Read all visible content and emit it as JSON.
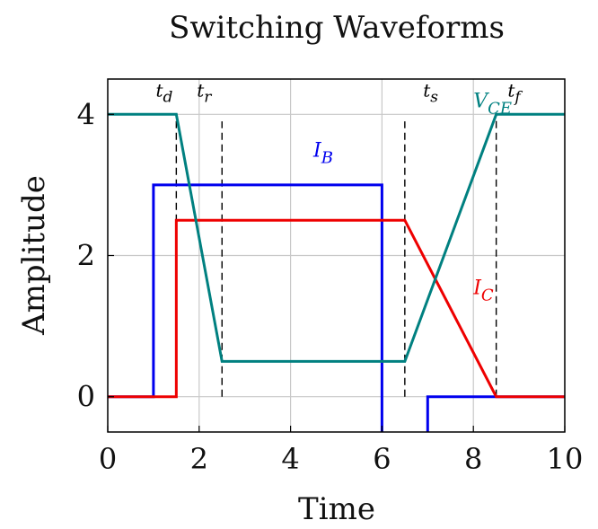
{
  "chart_data": {
    "type": "line",
    "title": "Switching Waveforms",
    "xlabel": "Time",
    "ylabel": "Amplitude",
    "xlim": [
      0,
      10
    ],
    "ylim": [
      -0.5,
      4.5
    ],
    "x_ticks": [
      0,
      2,
      4,
      6,
      8,
      10
    ],
    "y_ticks": [
      0,
      2,
      4
    ],
    "grid": true,
    "legend": "none",
    "series": [
      {
        "name": "I_B",
        "label_base": "I",
        "label_sub": "B",
        "label_position": {
          "x": 4.5,
          "y": 3.4
        },
        "color": "#0000ee",
        "points": [
          [
            0,
            0
          ],
          [
            1,
            0
          ],
          [
            1,
            3
          ],
          [
            6,
            3
          ],
          [
            6,
            -0.5
          ]
        ],
        "points_2": [
          [
            7,
            -0.5
          ],
          [
            7,
            0
          ],
          [
            10,
            0
          ]
        ]
      },
      {
        "name": "I_C",
        "label_base": "I",
        "label_sub": "C",
        "label_position": {
          "x": 8.0,
          "y": 1.45
        },
        "color": "#ee0000",
        "points": [
          [
            0,
            0
          ],
          [
            1.5,
            0
          ],
          [
            1.5,
            2.5
          ],
          [
            6.5,
            2.5
          ],
          [
            8.5,
            0
          ],
          [
            10,
            0
          ]
        ]
      },
      {
        "name": "V_CE",
        "label_base": "V",
        "label_sub": "CE",
        "label_position": {
          "x": 8.0,
          "y": 4.1
        },
        "color": "#008080",
        "points": [
          [
            0,
            4
          ],
          [
            1.5,
            4
          ],
          [
            2.5,
            0.5
          ],
          [
            6.5,
            0.5
          ],
          [
            8.5,
            4
          ],
          [
            10,
            4
          ]
        ]
      }
    ],
    "vertical_markers": [
      {
        "x": 1.5,
        "y_from": 0,
        "y_to": 4
      },
      {
        "x": 2.5,
        "y_from": 0,
        "y_to": 3.9
      },
      {
        "x": 6.5,
        "y_from": 0,
        "y_to": 3.9
      },
      {
        "x": 8.5,
        "y_from": 0,
        "y_to": 4
      }
    ],
    "annotations": [
      {
        "base": "t",
        "sub": "d",
        "x": 1.05,
        "y": 4.25
      },
      {
        "base": "t",
        "sub": "r",
        "x": 1.95,
        "y": 4.25
      },
      {
        "base": "t",
        "sub": "s",
        "x": 6.9,
        "y": 4.25
      },
      {
        "base": "t",
        "sub": "f",
        "x": 8.75,
        "y": 4.25
      }
    ],
    "colors": {
      "grid": "#c8c8c8",
      "axis": "#000000",
      "marker": "#000000"
    }
  }
}
